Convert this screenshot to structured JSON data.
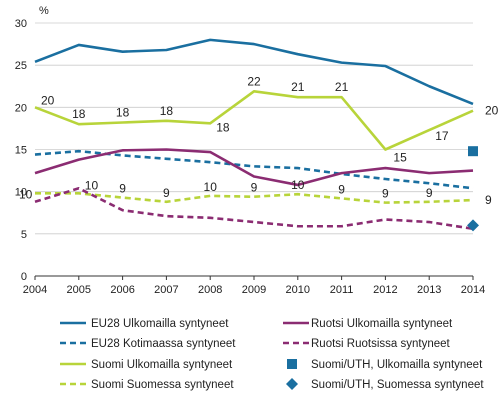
{
  "chart_data": {
    "type": "line",
    "y_unit_label": "%",
    "x": [
      2004,
      2005,
      2006,
      2007,
      2008,
      2009,
      2010,
      2011,
      2012,
      2013,
      2014
    ],
    "ylim": [
      0,
      30
    ],
    "yticks": [
      0,
      5,
      10,
      15,
      20,
      25,
      30
    ],
    "grid": "horizontal",
    "legend_position": "bottom",
    "series": [
      {
        "name": "EU28 Ulkomailla syntyneet",
        "color": "#1a6fa0",
        "style": "solid",
        "values": [
          25.4,
          27.4,
          26.6,
          26.8,
          28.0,
          27.5,
          26.3,
          25.3,
          24.9,
          22.5,
          20.4
        ]
      },
      {
        "name": "EU28 Kotimaassa syntyneet",
        "color": "#1a6fa0",
        "style": "dashed",
        "values": [
          14.4,
          14.8,
          14.3,
          13.9,
          13.5,
          13.0,
          12.8,
          12.1,
          11.5,
          11.0,
          10.4
        ]
      },
      {
        "name": "Suomi Ulkomailla syntyneet",
        "color": "#b8d43a",
        "style": "solid",
        "values": [
          20,
          18,
          18.2,
          18.4,
          18.1,
          21.9,
          21.2,
          21.2,
          15,
          17.3,
          19.6
        ],
        "labels": [
          "20",
          "18",
          "18",
          "18",
          "18",
          "22",
          "21",
          "21",
          "15",
          "17",
          "20"
        ]
      },
      {
        "name": "Suomi Suomessa syntyneet",
        "color": "#b8d43a",
        "style": "dashed",
        "values": [
          9.8,
          9.8,
          9.3,
          8.8,
          9.5,
          9.4,
          9.7,
          9.2,
          8.7,
          8.8,
          9.0
        ],
        "labels": [
          "10",
          "10",
          "9",
          "9",
          "10",
          "9",
          "10",
          "9",
          "9",
          "9",
          "9"
        ]
      },
      {
        "name": "Ruotsi Ulkomailla syntyneet",
        "color": "#8b2c72",
        "style": "solid",
        "values": [
          12.2,
          13.8,
          14.9,
          15.0,
          14.7,
          11.8,
          10.8,
          12.2,
          12.8,
          12.2,
          12.5
        ]
      },
      {
        "name": "Ruotsi Ruotsissa syntyneet",
        "color": "#8b2c72",
        "style": "dashed",
        "values": [
          8.8,
          10.4,
          7.8,
          7.1,
          6.9,
          6.4,
          5.9,
          5.9,
          6.7,
          6.4,
          5.6
        ]
      },
      {
        "name": "Suomi/UTH, Ulkomailla syntyneet",
        "color": "#1a6fa0",
        "style": "marker",
        "marker": "square",
        "x": [
          2014
        ],
        "values": [
          14.8
        ]
      },
      {
        "name": "Suomi/UTH, Suomessa syntyneet",
        "color": "#1a6fa0",
        "style": "marker",
        "marker": "diamond",
        "x": [
          2014
        ],
        "values": [
          6.0
        ]
      }
    ],
    "legend": {
      "left": [
        "EU28 Ulkomailla syntyneet",
        "EU28 Kotimaassa syntyneet",
        "Suomi Ulkomailla syntyneet",
        "Suomi Suomessa syntyneet"
      ],
      "right": [
        "Ruotsi Ulkomailla syntyneet",
        "Ruotsi Ruotsissa syntyneet",
        "Suomi/UTH, Ulkomailla syntyneet",
        "Suomi/UTH, Suomessa syntyneet"
      ]
    }
  }
}
